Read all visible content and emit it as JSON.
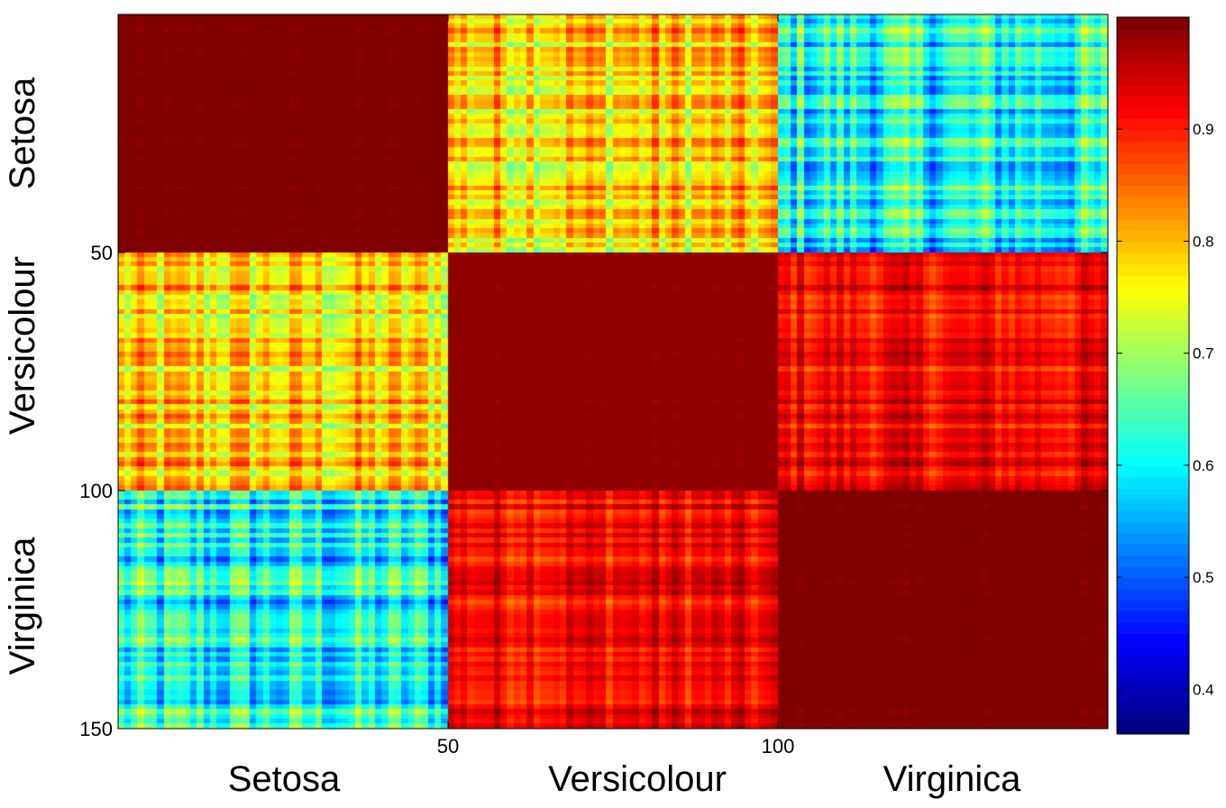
{
  "chart_data": {
    "type": "heatmap",
    "title": "",
    "matrix_size": 150,
    "groups": [
      {
        "name": "Setosa",
        "start": 1,
        "end": 50
      },
      {
        "name": "Versicolour",
        "start": 51,
        "end": 100
      },
      {
        "name": "Virginica",
        "start": 101,
        "end": 150
      }
    ],
    "x_tick_labels": [
      "50",
      "100"
    ],
    "y_tick_labels": [
      "50",
      "100",
      "150"
    ],
    "x_group_labels": [
      "Setosa",
      "Versicolour",
      "Virginica"
    ],
    "y_group_labels": [
      "Setosa",
      "Versicolour",
      "Virginica"
    ],
    "block_mean_values": [
      [
        0.98,
        0.78,
        0.6
      ],
      [
        0.78,
        0.97,
        0.92
      ],
      [
        0.6,
        0.92,
        0.98
      ]
    ],
    "colormap": "jet",
    "colorbar": {
      "range": [
        0.36,
        1.0
      ],
      "ticks": [
        0.4,
        0.5,
        0.6,
        0.7,
        0.8,
        0.9
      ],
      "tick_labels": [
        "0.4",
        "0.5",
        "0.6",
        "0.7",
        "0.8",
        "0.9"
      ]
    },
    "grid": false,
    "legend": "colorbar-right"
  }
}
